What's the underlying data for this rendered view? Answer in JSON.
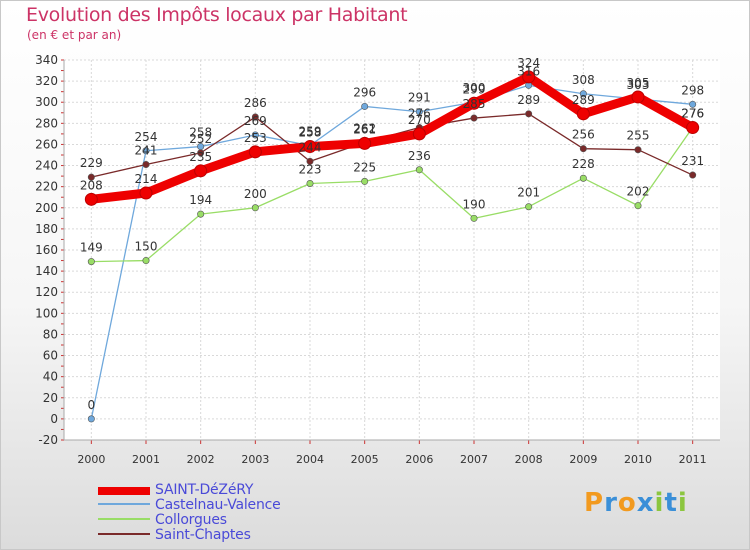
{
  "chart_data": {
    "type": "line",
    "title": "Evolution des Impôts locaux par Habitant",
    "subtitle": "(en € et par an)",
    "xlabel": "",
    "ylabel": "",
    "categories": [
      "2000",
      "2001",
      "2002",
      "2003",
      "2004",
      "2005",
      "2006",
      "2007",
      "2008",
      "2009",
      "2010",
      "2011"
    ],
    "ylim": [
      -20,
      340
    ],
    "yticks": [
      -20,
      0,
      20,
      40,
      60,
      80,
      100,
      120,
      140,
      160,
      180,
      200,
      220,
      240,
      260,
      280,
      300,
      320,
      340
    ],
    "grid": true,
    "series": [
      {
        "name": "SAINT-DéZéRY",
        "color": "#ee0000",
        "line_weight": "thick",
        "values": [
          208,
          214,
          235,
          253,
          258,
          261,
          270,
          299,
          324,
          289,
          305,
          276
        ],
        "labels": [
          "208",
          "214",
          "235",
          "253",
          "258",
          "261",
          "270",
          "299",
          "324",
          "289",
          "305",
          "276"
        ]
      },
      {
        "name": "Castelnau-Valence",
        "color": "#6fa8dc",
        "line_weight": "thin",
        "values": [
          0,
          254,
          258,
          269,
          259,
          296,
          291,
          300,
          316,
          308,
          303,
          298
        ],
        "labels": [
          "0",
          "254",
          "258",
          "269",
          "259",
          "296",
          "291",
          "300",
          "316",
          "308",
          "303",
          "298"
        ]
      },
      {
        "name": "Collorgues",
        "color": "#99dd66",
        "line_weight": "thin",
        "values": [
          149,
          150,
          194,
          200,
          223,
          225,
          236,
          190,
          201,
          228,
          202,
          276
        ],
        "labels": [
          "149",
          "150",
          "194",
          "200",
          "223",
          "225",
          "236",
          "190",
          "201",
          "228",
          "202",
          "276"
        ]
      },
      {
        "name": "Saint-Chaptes",
        "color": "#7a2a2a",
        "line_weight": "thin",
        "values": [
          229,
          241,
          252,
          286,
          244,
          262,
          276,
          285,
          289,
          256,
          255,
          231
        ],
        "labels": [
          "229",
          "241",
          "252",
          "286",
          "244",
          "262",
          "276",
          "285",
          "289",
          "256",
          "255",
          "231"
        ]
      }
    ],
    "legend": "bottom-left"
  },
  "brand": {
    "letters": [
      "P",
      "r",
      "o",
      "x",
      "i",
      "t",
      "i"
    ],
    "colors": [
      "#f29a1f",
      "#3a8fd8",
      "#f29a1f",
      "#3a8fd8",
      "#8cc63f",
      "#3a8fd8",
      "#8cc63f"
    ]
  }
}
